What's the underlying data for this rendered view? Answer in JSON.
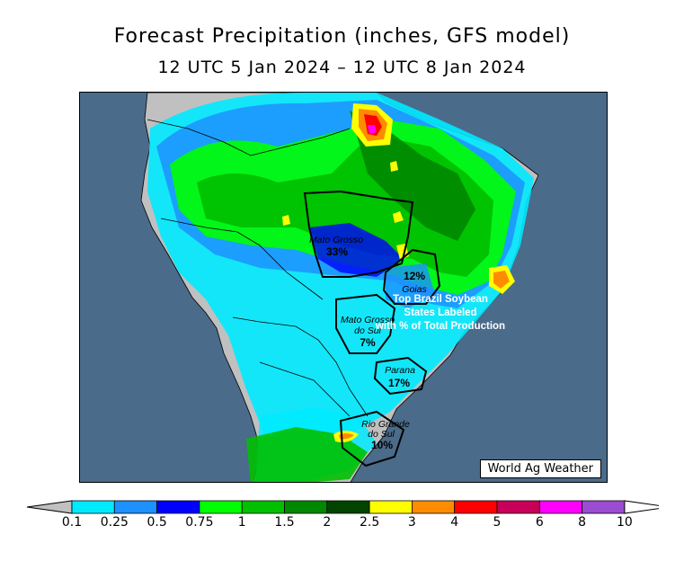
{
  "title": "Forecast Precipitation (inches, GFS model)",
  "subtitle": "12 UTC 5 Jan 2024 – 12 UTC 8 Jan 2024",
  "credit": "World Ag Weather",
  "note_lines": [
    "Top Brazil Soybean",
    "States Labeled",
    "with % of Total Production"
  ],
  "states": [
    {
      "name_lines": [
        "Mato Grosso"
      ],
      "pct": "33%"
    },
    {
      "name_lines": [
        "Goias"
      ],
      "pct": "12%"
    },
    {
      "name_lines": [
        "Mato Grosso",
        "do Sul"
      ],
      "pct": "7%"
    },
    {
      "name_lines": [
        "Parana"
      ],
      "pct": "17%"
    },
    {
      "name_lines": [
        "Rio Grande",
        "do Sul"
      ],
      "pct": "10%"
    }
  ],
  "legend": {
    "ticks": [
      "0.1",
      "0.25",
      "0.5",
      "0.75",
      "1",
      "1.5",
      "2",
      "2.5",
      "3",
      "4",
      "5",
      "6",
      "8",
      "10"
    ],
    "colors": [
      "#00eaff",
      "#1e90ff",
      "#0000ff",
      "#00ff00",
      "#00c000",
      "#008800",
      "#004400",
      "#ffff00",
      "#ff8c00",
      "#ff0000",
      "#c8005a",
      "#ff00ff",
      "#9a4dd0"
    ],
    "below_color": "#c0c0c0",
    "above_color": "#ffffff"
  },
  "colors": {
    "ocean": "#4a6b8a",
    "land": "#c0c0c0"
  }
}
